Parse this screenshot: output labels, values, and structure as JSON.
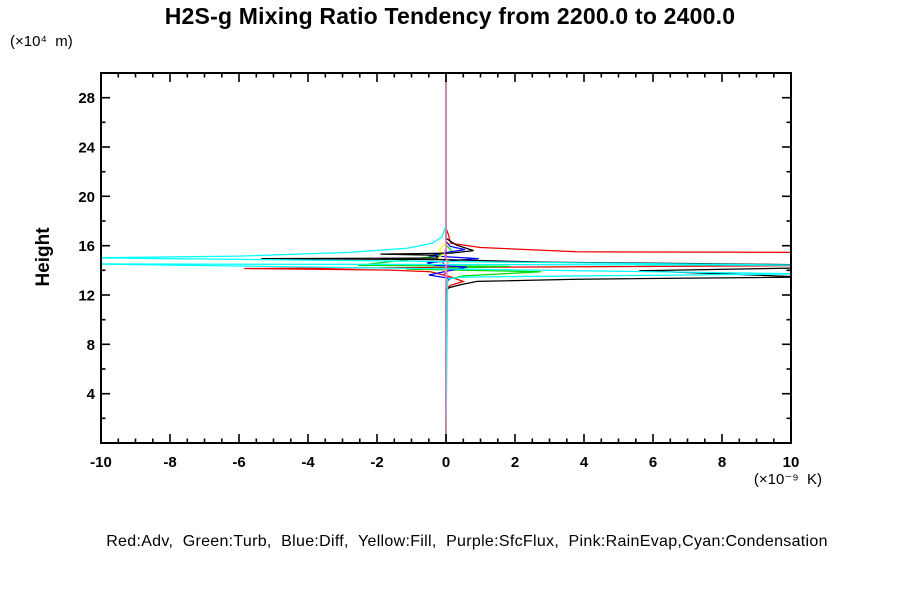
{
  "title": "H2S-g Mixing Ratio Tendency from 2200.0 to 2400.0",
  "y_axis": {
    "label": "Height",
    "unit": "(×10⁴  m)"
  },
  "x_axis": {
    "label": "",
    "unit": "(×10⁻⁹  K)"
  },
  "legend": "Red:Adv,  Green:Turb,  Blue:Diff,  Yellow:Fill,  Purple:SfcFlux,  Pink:RainEvap,Cyan:Condensation",
  "chart_data": {
    "type": "line",
    "title": "H2S-g Mixing Ratio Tendency from 2200.0 to 2400.0",
    "xlabel": "(×10⁻⁹ K)",
    "ylabel": "Height (×10⁴ m)",
    "xlim": [
      -10,
      10
    ],
    "ylim": [
      0,
      30
    ],
    "grid": false,
    "legend_position": "bottom",
    "x_tick_values": [
      -10,
      -8,
      -6,
      -4,
      -2,
      0,
      2,
      4,
      6,
      8,
      10
    ],
    "x_tick_labels": [
      "-10",
      "-8",
      "-6",
      "-4",
      "-2",
      "0",
      "2",
      "4",
      "6",
      "8",
      "10"
    ],
    "x_minor_step": 0.5,
    "y_tick_values": [
      4,
      8,
      12,
      16,
      20,
      24,
      28
    ],
    "y_tick_labels": [
      "4",
      "8",
      "12",
      "16",
      "20",
      "24",
      "28"
    ],
    "y_minor_step": 2,
    "zero_line": {
      "x": 0,
      "color": "#00ffff"
    },
    "series": [
      {
        "key": "adv",
        "legend_label": "Red:Adv",
        "color_name": "Red",
        "color": "#ee0000",
        "points": [
          [
            0,
            30
          ],
          [
            0,
            17.4
          ],
          [
            0.07,
            16.9
          ],
          [
            0.13,
            16.2
          ],
          [
            1.0,
            15.85
          ],
          [
            3.8,
            15.5
          ],
          [
            60,
            15.1
          ],
          [
            -5.85,
            14.15
          ],
          [
            -1.6,
            14.02
          ],
          [
            -0.45,
            13.88
          ],
          [
            0.1,
            13.5
          ],
          [
            0.5,
            13.1
          ],
          [
            0.15,
            12.8
          ],
          [
            0,
            12.55
          ],
          [
            0,
            0
          ]
        ]
      },
      {
        "key": "turb",
        "legend_label": "Green:Turb",
        "color_name": "Green",
        "color": "#00dd00",
        "points": [
          [
            0,
            30
          ],
          [
            0,
            16.05
          ],
          [
            0.18,
            15.55
          ],
          [
            -0.35,
            15.12
          ],
          [
            -2.55,
            14.4
          ],
          [
            1.85,
            14.32
          ],
          [
            -1.15,
            14.1
          ],
          [
            2.75,
            13.88
          ],
          [
            0.5,
            13.55
          ],
          [
            0.1,
            13.3
          ],
          [
            0,
            13.1
          ],
          [
            0,
            0
          ]
        ]
      },
      {
        "key": "diff",
        "legend_label": "Blue:Diff",
        "color_name": "Blue",
        "color": "#0000ff",
        "points": [
          [
            0,
            30
          ],
          [
            0,
            16.35
          ],
          [
            0.12,
            15.95
          ],
          [
            0.55,
            15.68
          ],
          [
            0.05,
            15.45
          ],
          [
            -0.5,
            15.18
          ],
          [
            0.95,
            14.95
          ],
          [
            0.2,
            14.8
          ],
          [
            -0.55,
            14.62
          ],
          [
            -0.3,
            14.4
          ],
          [
            0.6,
            14.27
          ],
          [
            -0.5,
            13.62
          ],
          [
            0.12,
            13.35
          ],
          [
            0,
            13.0
          ],
          [
            0,
            0
          ]
        ]
      },
      {
        "key": "fill",
        "legend_label": "Yellow:Fill",
        "color_name": "Yellow",
        "color": "#ffff00",
        "points": [
          [
            0,
            30
          ],
          [
            0,
            16.25
          ],
          [
            -0.2,
            15.62
          ],
          [
            -0.1,
            15.28
          ],
          [
            -0.24,
            14.95
          ],
          [
            0.12,
            14.72
          ],
          [
            0,
            14.45
          ],
          [
            0,
            0
          ]
        ]
      },
      {
        "key": "sfcflux",
        "legend_label": "Purple:SfcFlux",
        "color_name": "Purple",
        "color": "#aa22ee",
        "points": [
          [
            0,
            30
          ],
          [
            0,
            15.1
          ],
          [
            -0.09,
            14.6
          ],
          [
            0.09,
            14.05
          ],
          [
            -0.05,
            13.7
          ],
          [
            0,
            13.45
          ],
          [
            0,
            0
          ]
        ]
      },
      {
        "key": "black",
        "legend_label": "",
        "color_name": "Black",
        "color": "#000000",
        "points": [
          [
            0,
            30
          ],
          [
            0,
            16.6
          ],
          [
            0.3,
            16.05
          ],
          [
            0.8,
            15.6
          ],
          [
            0.15,
            15.4
          ],
          [
            -1.9,
            15.32
          ],
          [
            -0.3,
            15.22
          ],
          [
            -0.25,
            15.0
          ],
          [
            -5.35,
            14.95
          ],
          [
            -0.05,
            14.87
          ],
          [
            3.0,
            14.65
          ],
          [
            7.3,
            14.55
          ],
          [
            10.45,
            14.45
          ],
          [
            10.45,
            14.2
          ],
          [
            5.6,
            13.97
          ],
          [
            10.45,
            13.45
          ],
          [
            3.8,
            13.28
          ],
          [
            0.9,
            13.1
          ],
          [
            0.45,
            12.85
          ],
          [
            0.1,
            12.6
          ],
          [
            0,
            12.4
          ],
          [
            0,
            0
          ]
        ]
      },
      {
        "key": "condensation",
        "legend_label": "Cyan:Condensation",
        "color_name": "Cyan",
        "color": "#00ffff",
        "points": [
          [
            0,
            30
          ],
          [
            0,
            17.6
          ],
          [
            -0.12,
            16.7
          ],
          [
            -0.4,
            16.2
          ],
          [
            -1.1,
            15.8
          ],
          [
            -2.8,
            15.45
          ],
          [
            -6,
            15.15
          ],
          [
            -10.45,
            15.02
          ],
          [
            10.45,
            14.42
          ],
          [
            -10.45,
            14.52
          ],
          [
            10.45,
            13.72
          ],
          [
            0.45,
            13.45
          ],
          [
            0.05,
            13.3
          ],
          [
            0,
            0
          ]
        ]
      },
      {
        "key": "rainevap",
        "legend_label": "Pink:RainEvap",
        "color_name": "Pink",
        "color": "#ff88bb",
        "points": [
          [
            0,
            30
          ],
          [
            0,
            15.95
          ],
          [
            -0.05,
            15.3
          ],
          [
            0.06,
            14.6
          ],
          [
            -0.06,
            14.0
          ],
          [
            0.04,
            13.75
          ],
          [
            0,
            13.5
          ],
          [
            0,
            0
          ]
        ]
      }
    ]
  }
}
